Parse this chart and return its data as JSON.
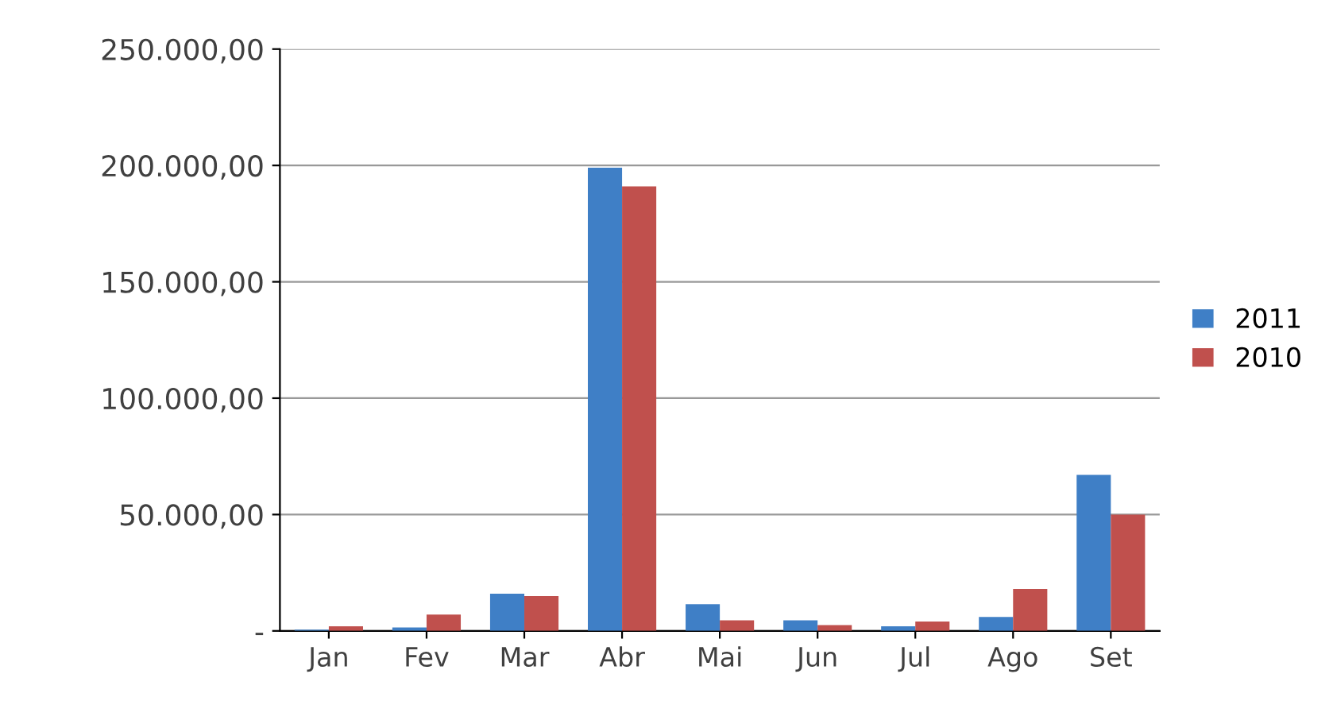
{
  "chart_data": {
    "type": "bar",
    "categories": [
      "Jan",
      "Fev",
      "Mar",
      "Abr",
      "Mai",
      "Jun",
      "Jul",
      "Ago",
      "Set"
    ],
    "series": [
      {
        "name": "2011",
        "color": "#3f7fc6",
        "values": [
          500,
          1500,
          16000,
          199000,
          11500,
          4500,
          2000,
          6000,
          67000
        ]
      },
      {
        "name": "2010",
        "color": "#c0504d",
        "values": [
          2000,
          7000,
          15000,
          191000,
          4500,
          2500,
          4000,
          18000,
          50000
        ]
      }
    ],
    "ylim": [
      0,
      250000
    ],
    "yticks": [
      {
        "value": 0,
        "label": "-"
      },
      {
        "value": 50000,
        "label": "50.000,00"
      },
      {
        "value": 100000,
        "label": "100.000,00"
      },
      {
        "value": 150000,
        "label": "150.000,00"
      },
      {
        "value": 200000,
        "label": "200.000,00"
      },
      {
        "value": 250000,
        "label": "250.000,00"
      }
    ],
    "grid": "y",
    "legend": "right"
  }
}
